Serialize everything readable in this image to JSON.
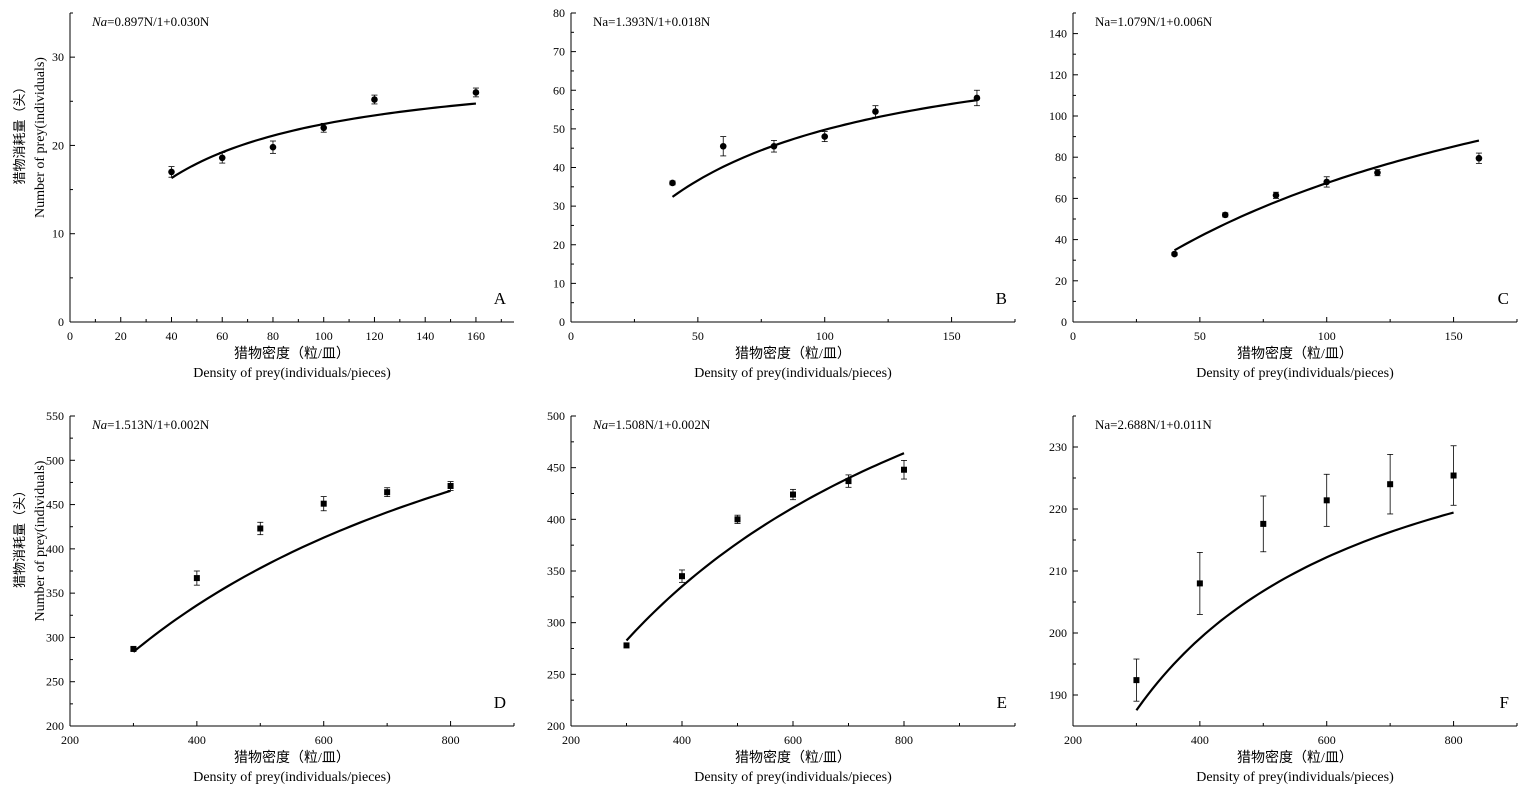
{
  "figure": {
    "background": "#ffffff",
    "ink": "#000000"
  },
  "chart_data": [
    {
      "panel": "A",
      "type": "scatter",
      "equation": "0.897N/1+0.030N",
      "eq_prefix": "Na",
      "eq_prefix_italic": true,
      "marker": "circle",
      "x": [
        40,
        60,
        80,
        100,
        120,
        160
      ],
      "y": [
        17.0,
        18.6,
        19.8,
        22.0,
        25.2,
        26.0
      ],
      "err": [
        0.6,
        0.6,
        0.7,
        0.5,
        0.5,
        0.5
      ],
      "fit": {
        "a": 0.897,
        "b": 0.03,
        "x_from": 40,
        "x_to": 160
      },
      "xlim": [
        0,
        175
      ],
      "ylim": [
        0,
        35
      ],
      "xticks": [
        0,
        20,
        40,
        60,
        80,
        100,
        120,
        140,
        160
      ],
      "yticks": [
        0,
        10,
        20,
        30
      ],
      "xlabel_cn": "猎物密度（粒/皿）",
      "xlabel_en": "Density of prey(individuals/pieces)",
      "ylabel_cn": "猎物消耗量（头）",
      "ylabel_en": "Number of prey(individuals)"
    },
    {
      "panel": "B",
      "type": "scatter",
      "equation": "Na=1.393N/1+0.018N",
      "marker": "circle",
      "x": [
        40,
        60,
        80,
        100,
        120,
        160
      ],
      "y": [
        36.0,
        45.5,
        45.5,
        48.0,
        54.5,
        58.0
      ],
      "err": [
        0.5,
        2.5,
        1.5,
        1.3,
        1.5,
        2.0
      ],
      "fit": {
        "a": 1.393,
        "b": 0.018,
        "x_from": 40,
        "x_to": 160
      },
      "xlim": [
        0,
        175
      ],
      "ylim": [
        0,
        80
      ],
      "xticks": [
        0,
        50,
        100,
        150
      ],
      "yticks": [
        0,
        10,
        20,
        30,
        40,
        50,
        60,
        70,
        80
      ],
      "xlabel_cn": "猎物密度（粒/皿）",
      "xlabel_en": "Density of prey(individuals/pieces)"
    },
    {
      "panel": "C",
      "type": "scatter",
      "equation": "Na=1.079N/1+0.006N",
      "marker": "circle",
      "x": [
        40,
        60,
        80,
        100,
        120,
        160
      ],
      "y": [
        33.0,
        52.0,
        61.5,
        68.0,
        72.5,
        79.5
      ],
      "err": [
        0.8,
        1.0,
        1.5,
        2.5,
        1.5,
        2.5
      ],
      "fit": {
        "a": 1.079,
        "b": 0.006,
        "x_from": 40,
        "x_to": 160
      },
      "xlim": [
        0,
        175
      ],
      "ylim": [
        0,
        150
      ],
      "xticks": [
        0,
        50,
        100,
        150
      ],
      "yticks": [
        0,
        20,
        40,
        60,
        80,
        100,
        120,
        140
      ],
      "xlabel_cn": "猎物密度（粒/皿）",
      "xlabel_en": "Density of prey(individuals/pieces)"
    },
    {
      "panel": "D",
      "type": "scatter",
      "equation": "1.513N/1+0.002N",
      "eq_prefix": "Na",
      "eq_prefix_italic": true,
      "marker": "square",
      "x": [
        300,
        400,
        500,
        600,
        700,
        800
      ],
      "y": [
        287,
        367,
        423,
        451,
        464,
        471
      ],
      "err": [
        2,
        8,
        7,
        8,
        5,
        5
      ],
      "fit": {
        "a": 1.513,
        "b": 0.002,
        "x_from": 300,
        "x_to": 800
      },
      "xlim": [
        200,
        900
      ],
      "ylim": [
        200,
        550
      ],
      "xticks": [
        200,
        400,
        600,
        800
      ],
      "yticks": [
        200,
        250,
        300,
        350,
        400,
        450,
        500,
        550
      ],
      "xlabel_cn": "猎物密度（粒/皿）",
      "xlabel_en": "Density of prey(individuals/pieces)",
      "ylabel_cn": "猎物消耗量（头）",
      "ylabel_en": "Number of prey(individuals)"
    },
    {
      "panel": "E",
      "type": "scatter",
      "equation": "1.508N/1+0.002N",
      "eq_prefix": "Na",
      "eq_prefix_italic": true,
      "marker": "square",
      "x": [
        300,
        400,
        500,
        600,
        700,
        800
      ],
      "y": [
        278,
        345,
        400,
        424,
        437,
        448
      ],
      "err": [
        2,
        6,
        4,
        5,
        6,
        9
      ],
      "fit": {
        "a": 1.508,
        "b": 0.002,
        "x_from": 300,
        "x_to": 800
      },
      "xlim": [
        200,
        1000
      ],
      "ylim": [
        200,
        500
      ],
      "xticks": [
        200,
        400,
        600,
        800
      ],
      "yticks": [
        200,
        250,
        300,
        350,
        400,
        450,
        500
      ],
      "xlabel_cn": "猎物密度（粒/皿）",
      "xlabel_en": "Density of prey(individuals/pieces)"
    },
    {
      "panel": "F",
      "type": "scatter",
      "equation": "Na=2.688N/1+0.011N",
      "marker": "square",
      "x": [
        300,
        400,
        500,
        600,
        700,
        800
      ],
      "y": [
        192.4,
        208.0,
        217.6,
        221.4,
        224.0,
        225.4
      ],
      "err": [
        3.4,
        5.0,
        4.5,
        4.2,
        4.8,
        4.8
      ],
      "fit": {
        "a": 2.688,
        "b": 0.011,
        "x_from": 300,
        "x_to": 800
      },
      "xlim": [
        200,
        900
      ],
      "ylim": [
        185,
        235
      ],
      "xticks": [
        200,
        400,
        600,
        800
      ],
      "yticks": [
        190,
        200,
        210,
        220,
        230
      ],
      "xlabel_cn": "猎物密度（粒/皿）",
      "xlabel_en": "Density of prey(individuals/pieces)"
    }
  ]
}
